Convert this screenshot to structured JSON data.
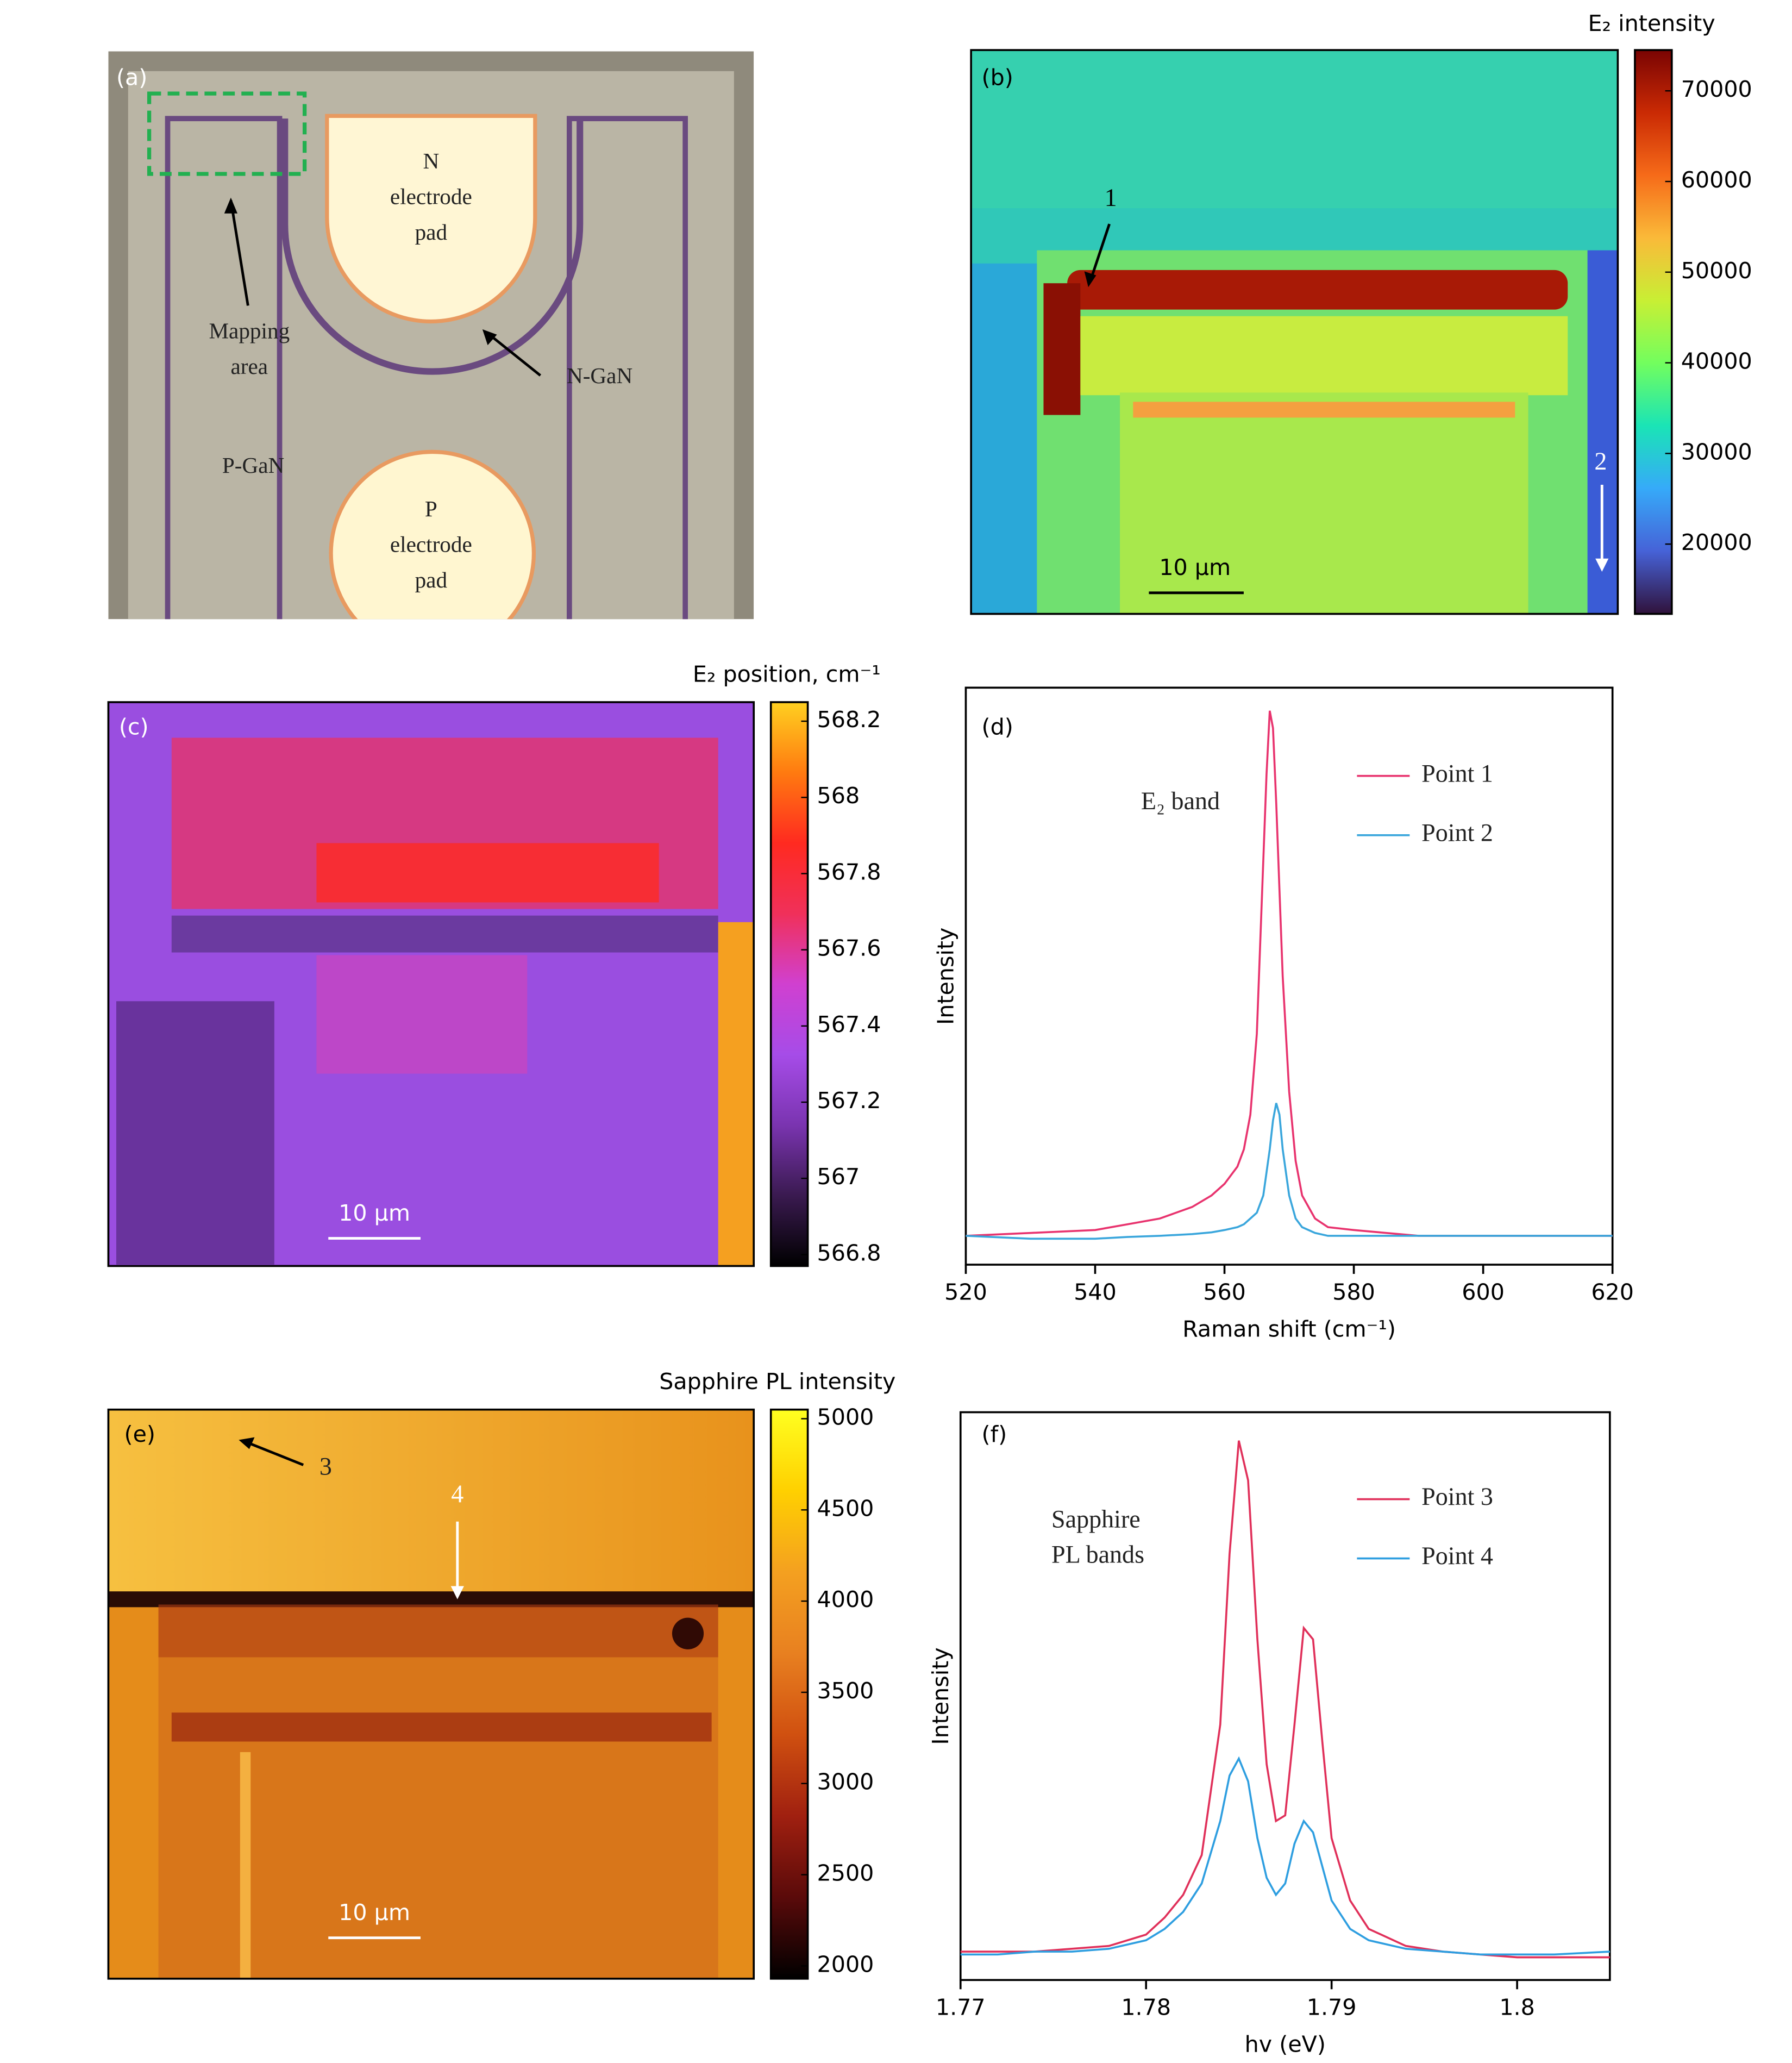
{
  "chart_data": [
    {
      "type": "image",
      "label": "(a)",
      "annotations": [
        [
          "N",
          "electrode",
          "pad"
        ],
        [
          "Mapping",
          "area"
        ],
        [
          "N-GaN"
        ],
        [
          "P-GaN"
        ],
        [
          "P",
          "electrode",
          "pad"
        ]
      ]
    },
    {
      "type": "heatmap",
      "label": "(b)",
      "colorbar_label": "E₂ intensity",
      "clim": [
        12300,
        74500
      ],
      "cticks": [
        20000,
        30000,
        40000,
        50000,
        60000,
        70000
      ],
      "colors": [
        "#30123b",
        "#4662d7",
        "#36aaf9",
        "#1ae4b6",
        "#72fe5e",
        "#c8ef34",
        "#faba39",
        "#f66b19",
        "#ca2a04",
        "#7a0403"
      ],
      "scale_bar": "10 μm",
      "annotations": [
        "1",
        "2"
      ]
    },
    {
      "type": "heatmap",
      "label": "(c)",
      "colorbar_label": "E₂ position, cm⁻¹",
      "clim": [
        566.77,
        568.25
      ],
      "cticks": [
        566.8,
        567,
        567.2,
        567.4,
        567.6,
        567.8,
        568,
        568.2
      ],
      "colors": [
        "#000000",
        "#3a1a50",
        "#7a34b0",
        "#a64ce8",
        "#d040d0",
        "#f0305a",
        "#ff2a20",
        "#ff7a10",
        "#ffd020"
      ],
      "scale_bar": "10 μm"
    },
    {
      "type": "line",
      "label": "(d)",
      "x": [
        520,
        530,
        540,
        545,
        550,
        555,
        558,
        560,
        562,
        563,
        564,
        565,
        566,
        566.5,
        567,
        567.5,
        568,
        568.5,
        569,
        570,
        571,
        572,
        574,
        576,
        580,
        590,
        600,
        610,
        620
      ],
      "series": [
        {
          "name": "Point 1",
          "color": "#e8336e",
          "values": [
            5,
            5.5,
            6,
            7,
            8,
            10,
            12,
            14,
            17,
            20,
            26,
            40,
            70,
            85,
            96,
            93,
            80,
            65,
            50,
            30,
            18,
            12,
            8,
            6.5,
            6,
            5,
            5,
            5,
            5
          ]
        },
        {
          "name": "Point 2",
          "color": "#3aa6dc",
          "values": [
            5,
            4.5,
            4.5,
            4.8,
            5,
            5.3,
            5.6,
            6,
            6.5,
            7,
            8,
            9,
            12,
            16,
            20,
            25,
            28,
            26,
            20,
            12,
            8,
            6.5,
            5.5,
            5,
            5,
            5,
            5,
            5,
            5
          ]
        }
      ],
      "xlim": [
        520,
        620
      ],
      "xticks": [
        520,
        540,
        560,
        580,
        600,
        620
      ],
      "ylim": [
        0,
        100
      ],
      "xlabel": "Raman shift (cm⁻¹)",
      "ylabel": "Intensity",
      "annotations": [
        "E₂ band"
      ]
    },
    {
      "type": "heatmap",
      "label": "(e)",
      "colorbar_label": "Sapphire PL intensity",
      "clim": [
        1930,
        5050
      ],
      "cticks": [
        2000,
        2500,
        3000,
        3500,
        4000,
        4500,
        5000
      ],
      "colors": [
        "#000000",
        "#5a0a0a",
        "#a02010",
        "#d05010",
        "#e88020",
        "#f4a020",
        "#ffd000",
        "#ffff20"
      ],
      "scale_bar": "10 μm",
      "annotations": [
        "3",
        "4"
      ]
    },
    {
      "type": "line",
      "label": "(f)",
      "x": [
        1.77,
        1.772,
        1.774,
        1.776,
        1.778,
        1.78,
        1.781,
        1.782,
        1.783,
        1.784,
        1.7845,
        1.785,
        1.7855,
        1.786,
        1.7865,
        1.787,
        1.7875,
        1.788,
        1.7885,
        1.789,
        1.7895,
        1.79,
        1.791,
        1.792,
        1.794,
        1.796,
        1.798,
        1.8,
        1.802,
        1.805
      ],
      "series": [
        {
          "name": "Point 3",
          "color": "#e0305a",
          "values": [
            5,
            5,
            5,
            5.5,
            6,
            8,
            11,
            15,
            22,
            45,
            75,
            95,
            88,
            60,
            38,
            28,
            29,
            45,
            62,
            60,
            42,
            25,
            14,
            9,
            6,
            5,
            4.5,
            4,
            4,
            4
          ]
        },
        {
          "name": "Point 4",
          "color": "#2e9ee0",
          "values": [
            4.5,
            4.5,
            5,
            5,
            5.5,
            7,
            9,
            12,
            17,
            28,
            36,
            39,
            35,
            25,
            18,
            15,
            17,
            24,
            28,
            26,
            20,
            14,
            9,
            7,
            5.5,
            5,
            4.5,
            4.5,
            4.5,
            5
          ]
        }
      ],
      "xlim": [
        1.77,
        1.805
      ],
      "xticks": [
        1.77,
        1.78,
        1.79,
        1.8
      ],
      "ylim": [
        0,
        100
      ],
      "xlabel": "hv (eV)",
      "ylabel": "Intensity",
      "annotations": [
        "Sapphire",
        "PL bands"
      ]
    }
  ]
}
